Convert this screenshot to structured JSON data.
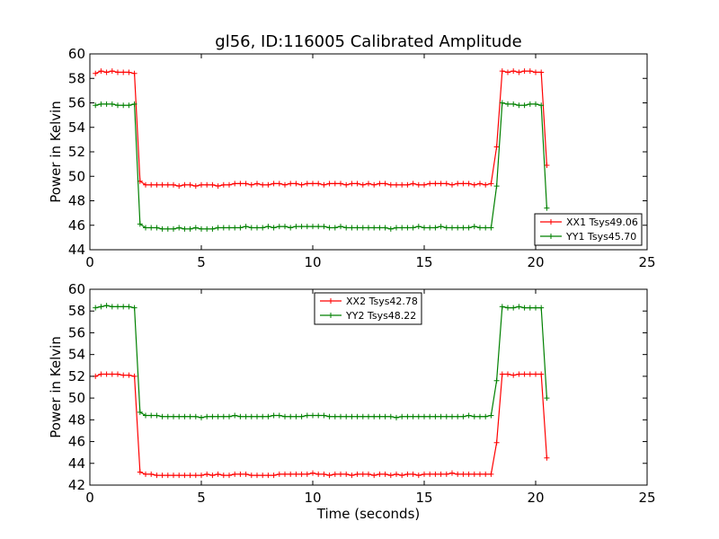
{
  "colors": {
    "xx": "#ff0000",
    "yy": "#008000"
  },
  "chart_data": [
    {
      "type": "line",
      "title": "gl56, ID:116005 Calibrated Amplitude",
      "xlabel": "",
      "ylabel": "Power in Kelvin",
      "xlim": [
        0,
        25
      ],
      "ylim": [
        44,
        60
      ],
      "xticks": [
        0,
        5,
        10,
        15,
        20,
        25
      ],
      "yticks": [
        44,
        46,
        48,
        50,
        52,
        54,
        56,
        58,
        60
      ],
      "legend_position": "lower-right",
      "grid": false,
      "series": [
        {
          "name": "XX1 Tsys49.06",
          "color": "#ff0000",
          "x": [
            0.25,
            0.5,
            0.75,
            1.0,
            1.25,
            1.5,
            1.75,
            2.0,
            2.25,
            2.5,
            2.75,
            3.0,
            3.25,
            3.5,
            3.75,
            4.0,
            4.25,
            4.5,
            4.75,
            5.0,
            5.25,
            5.5,
            5.75,
            6.0,
            6.25,
            6.5,
            6.75,
            7.0,
            7.25,
            7.5,
            7.75,
            8.0,
            8.25,
            8.5,
            8.75,
            9.0,
            9.25,
            9.5,
            9.75,
            10.0,
            10.25,
            10.5,
            10.75,
            11.0,
            11.25,
            11.5,
            11.75,
            12.0,
            12.25,
            12.5,
            12.75,
            13.0,
            13.25,
            13.5,
            13.75,
            14.0,
            14.25,
            14.5,
            14.75,
            15.0,
            15.25,
            15.5,
            15.75,
            16.0,
            16.25,
            16.5,
            16.75,
            17.0,
            17.25,
            17.5,
            17.75,
            18.0,
            18.25,
            18.5,
            18.75,
            19.0,
            19.25,
            19.5,
            19.75,
            20.0,
            20.25,
            20.5
          ],
          "y": [
            58.4,
            58.6,
            58.5,
            58.6,
            58.5,
            58.5,
            58.5,
            58.4,
            49.6,
            49.3,
            49.3,
            49.3,
            49.3,
            49.3,
            49.3,
            49.2,
            49.3,
            49.3,
            49.2,
            49.3,
            49.3,
            49.3,
            49.2,
            49.3,
            49.3,
            49.4,
            49.4,
            49.4,
            49.3,
            49.4,
            49.3,
            49.3,
            49.4,
            49.4,
            49.3,
            49.4,
            49.4,
            49.3,
            49.4,
            49.4,
            49.4,
            49.3,
            49.4,
            49.4,
            49.4,
            49.3,
            49.4,
            49.4,
            49.3,
            49.4,
            49.3,
            49.4,
            49.4,
            49.3,
            49.3,
            49.3,
            49.3,
            49.4,
            49.3,
            49.3,
            49.4,
            49.4,
            49.4,
            49.4,
            49.3,
            49.4,
            49.4,
            49.4,
            49.3,
            49.4,
            49.3,
            49.4,
            52.4,
            58.6,
            58.5,
            58.6,
            58.5,
            58.6,
            58.6,
            58.5,
            58.5,
            50.9
          ]
        },
        {
          "name": "YY1 Tsys45.70",
          "color": "#008000",
          "x": [
            0.25,
            0.5,
            0.75,
            1.0,
            1.25,
            1.5,
            1.75,
            2.0,
            2.25,
            2.5,
            2.75,
            3.0,
            3.25,
            3.5,
            3.75,
            4.0,
            4.25,
            4.5,
            4.75,
            5.0,
            5.25,
            5.5,
            5.75,
            6.0,
            6.25,
            6.5,
            6.75,
            7.0,
            7.25,
            7.5,
            7.75,
            8.0,
            8.25,
            8.5,
            8.75,
            9.0,
            9.25,
            9.5,
            9.75,
            10.0,
            10.25,
            10.5,
            10.75,
            11.0,
            11.25,
            11.5,
            11.75,
            12.0,
            12.25,
            12.5,
            12.75,
            13.0,
            13.25,
            13.5,
            13.75,
            14.0,
            14.25,
            14.5,
            14.75,
            15.0,
            15.25,
            15.5,
            15.75,
            16.0,
            16.25,
            16.5,
            16.75,
            17.0,
            17.25,
            17.5,
            17.75,
            18.0,
            18.25,
            18.5,
            18.75,
            19.0,
            19.25,
            19.5,
            19.75,
            20.0,
            20.25,
            20.5
          ],
          "y": [
            55.8,
            55.9,
            55.9,
            55.9,
            55.8,
            55.8,
            55.8,
            55.9,
            46.1,
            45.8,
            45.8,
            45.8,
            45.7,
            45.7,
            45.7,
            45.8,
            45.7,
            45.7,
            45.8,
            45.7,
            45.7,
            45.7,
            45.8,
            45.8,
            45.8,
            45.8,
            45.8,
            45.9,
            45.8,
            45.8,
            45.8,
            45.9,
            45.8,
            45.9,
            45.9,
            45.8,
            45.9,
            45.9,
            45.9,
            45.9,
            45.9,
            45.9,
            45.8,
            45.8,
            45.9,
            45.8,
            45.8,
            45.8,
            45.8,
            45.8,
            45.8,
            45.8,
            45.8,
            45.7,
            45.8,
            45.8,
            45.8,
            45.8,
            45.9,
            45.8,
            45.8,
            45.8,
            45.9,
            45.8,
            45.8,
            45.8,
            45.8,
            45.8,
            45.9,
            45.8,
            45.8,
            45.8,
            49.2,
            56.0,
            55.9,
            55.9,
            55.8,
            55.8,
            55.9,
            55.9,
            55.8,
            47.4
          ]
        }
      ]
    },
    {
      "type": "line",
      "title": "",
      "xlabel": "Time (seconds)",
      "ylabel": "Power in Kelvin",
      "xlim": [
        0,
        25
      ],
      "ylim": [
        42,
        60
      ],
      "xticks": [
        0,
        5,
        10,
        15,
        20,
        25
      ],
      "yticks": [
        42,
        44,
        46,
        48,
        50,
        52,
        54,
        56,
        58,
        60
      ],
      "legend_position": "upper-center",
      "grid": false,
      "series": [
        {
          "name": "XX2 Tsys42.78",
          "color": "#ff0000",
          "x": [
            0.25,
            0.5,
            0.75,
            1.0,
            1.25,
            1.5,
            1.75,
            2.0,
            2.25,
            2.5,
            2.75,
            3.0,
            3.25,
            3.5,
            3.75,
            4.0,
            4.25,
            4.5,
            4.75,
            5.0,
            5.25,
            5.5,
            5.75,
            6.0,
            6.25,
            6.5,
            6.75,
            7.0,
            7.25,
            7.5,
            7.75,
            8.0,
            8.25,
            8.5,
            8.75,
            9.0,
            9.25,
            9.5,
            9.75,
            10.0,
            10.25,
            10.5,
            10.75,
            11.0,
            11.25,
            11.5,
            11.75,
            12.0,
            12.25,
            12.5,
            12.75,
            13.0,
            13.25,
            13.5,
            13.75,
            14.0,
            14.25,
            14.5,
            14.75,
            15.0,
            15.25,
            15.5,
            15.75,
            16.0,
            16.25,
            16.5,
            16.75,
            17.0,
            17.25,
            17.5,
            17.75,
            18.0,
            18.25,
            18.5,
            18.75,
            19.0,
            19.25,
            19.5,
            19.75,
            20.0,
            20.25,
            20.5
          ],
          "y": [
            52.0,
            52.2,
            52.2,
            52.2,
            52.2,
            52.1,
            52.1,
            52.0,
            43.2,
            43.0,
            43.0,
            42.9,
            42.9,
            42.9,
            42.9,
            42.9,
            42.9,
            42.9,
            42.9,
            42.9,
            43.0,
            42.9,
            43.0,
            42.9,
            42.9,
            43.0,
            43.0,
            43.0,
            42.9,
            42.9,
            42.9,
            42.9,
            42.9,
            43.0,
            43.0,
            43.0,
            43.0,
            43.0,
            43.0,
            43.1,
            43.0,
            43.0,
            42.9,
            43.0,
            43.0,
            43.0,
            42.9,
            43.0,
            43.0,
            43.0,
            42.9,
            43.0,
            43.0,
            42.9,
            43.0,
            42.9,
            43.0,
            43.0,
            42.9,
            43.0,
            43.0,
            43.0,
            43.0,
            43.0,
            43.1,
            43.0,
            43.0,
            43.0,
            43.0,
            43.0,
            43.0,
            43.0,
            45.9,
            52.2,
            52.2,
            52.1,
            52.2,
            52.2,
            52.2,
            52.2,
            52.2,
            44.5
          ]
        },
        {
          "name": "YY2 Tsys48.22",
          "color": "#008000",
          "x": [
            0.25,
            0.5,
            0.75,
            1.0,
            1.25,
            1.5,
            1.75,
            2.0,
            2.25,
            2.5,
            2.75,
            3.0,
            3.25,
            3.5,
            3.75,
            4.0,
            4.25,
            4.5,
            4.75,
            5.0,
            5.25,
            5.5,
            5.75,
            6.0,
            6.25,
            6.5,
            6.75,
            7.0,
            7.25,
            7.5,
            7.75,
            8.0,
            8.25,
            8.5,
            8.75,
            9.0,
            9.25,
            9.5,
            9.75,
            10.0,
            10.25,
            10.5,
            10.75,
            11.0,
            11.25,
            11.5,
            11.75,
            12.0,
            12.25,
            12.5,
            12.75,
            13.0,
            13.25,
            13.5,
            13.75,
            14.0,
            14.25,
            14.5,
            14.75,
            15.0,
            15.25,
            15.5,
            15.75,
            16.0,
            16.25,
            16.5,
            16.75,
            17.0,
            17.25,
            17.5,
            17.75,
            18.0,
            18.25,
            18.5,
            18.75,
            19.0,
            19.25,
            19.5,
            19.75,
            20.0,
            20.25,
            20.5
          ],
          "y": [
            58.3,
            58.4,
            58.5,
            58.4,
            58.4,
            58.4,
            58.4,
            58.3,
            48.7,
            48.4,
            48.4,
            48.4,
            48.3,
            48.3,
            48.3,
            48.3,
            48.3,
            48.3,
            48.3,
            48.2,
            48.3,
            48.3,
            48.3,
            48.3,
            48.3,
            48.4,
            48.3,
            48.3,
            48.3,
            48.3,
            48.3,
            48.3,
            48.4,
            48.4,
            48.3,
            48.3,
            48.3,
            48.3,
            48.4,
            48.4,
            48.4,
            48.4,
            48.3,
            48.3,
            48.3,
            48.3,
            48.3,
            48.3,
            48.3,
            48.3,
            48.3,
            48.3,
            48.3,
            48.3,
            48.2,
            48.3,
            48.3,
            48.3,
            48.3,
            48.3,
            48.3,
            48.3,
            48.3,
            48.3,
            48.3,
            48.3,
            48.3,
            48.4,
            48.3,
            48.3,
            48.3,
            48.4,
            51.6,
            58.4,
            58.3,
            58.3,
            58.4,
            58.3,
            58.3,
            58.3,
            58.3,
            50.0
          ]
        }
      ]
    }
  ]
}
